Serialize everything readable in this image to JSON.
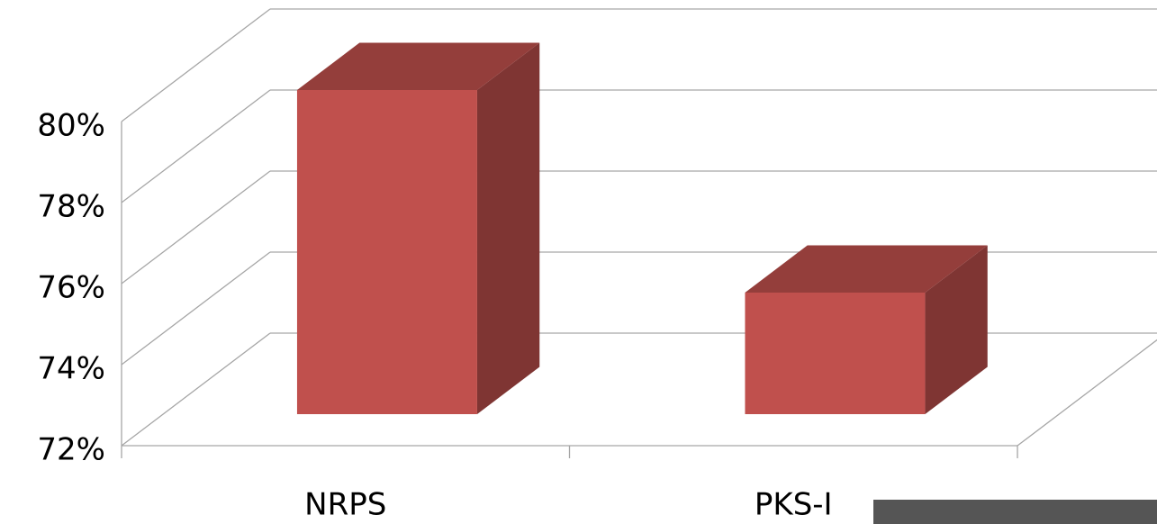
{
  "chart_data": {
    "type": "bar3d",
    "categories": [
      "NRPS",
      "PKS-I"
    ],
    "values": [
      80,
      75
    ],
    "color": "#c0504d",
    "ylim": [
      72,
      80
    ],
    "yticks": [
      {
        "value": 72,
        "label": "72%"
      },
      {
        "value": 74,
        "label": "74%"
      },
      {
        "value": 76,
        "label": "76%"
      },
      {
        "value": 78,
        "label": "78%"
      },
      {
        "value": 80,
        "label": "80%"
      }
    ],
    "grid": true
  }
}
